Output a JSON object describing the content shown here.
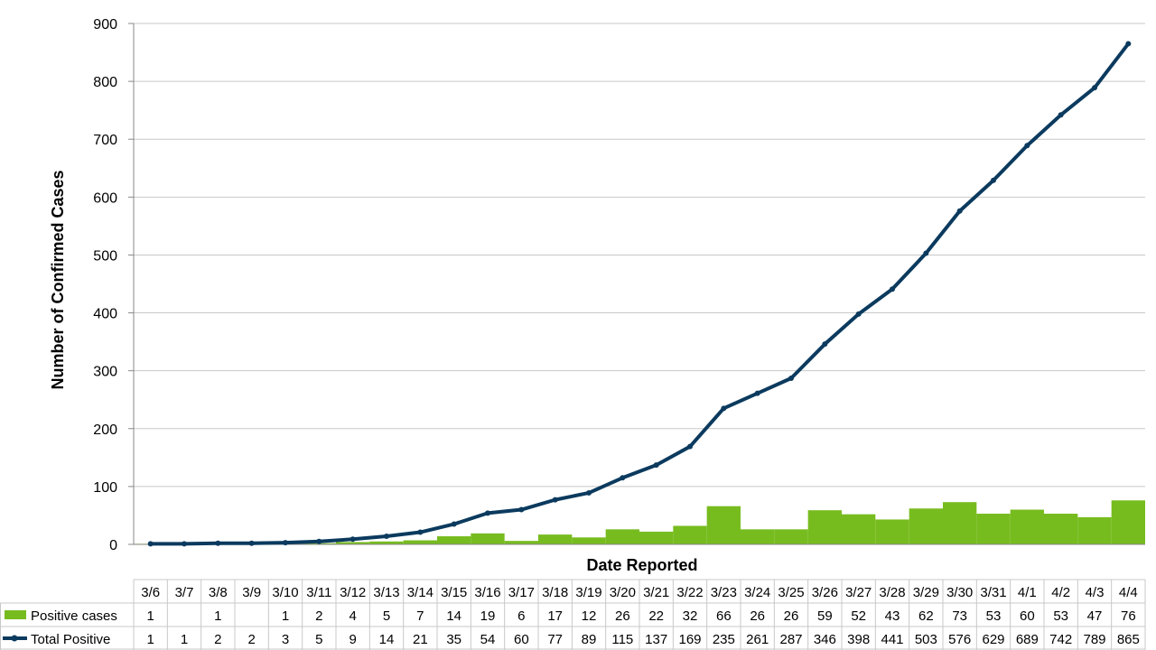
{
  "chart_data": {
    "type": "bar+line",
    "categories": [
      "3/6",
      "3/7",
      "3/8",
      "3/9",
      "3/10",
      "3/11",
      "3/12",
      "3/13",
      "3/14",
      "3/15",
      "3/16",
      "3/17",
      "3/18",
      "3/19",
      "3/20",
      "3/21",
      "3/22",
      "3/23",
      "3/24",
      "3/25",
      "3/26",
      "3/27",
      "3/28",
      "3/29",
      "3/30",
      "3/31",
      "4/1",
      "4/2",
      "4/3",
      "4/4"
    ],
    "series": [
      {
        "name": "Positive cases",
        "type": "bar",
        "color": "#77bc1f",
        "values": [
          1,
          null,
          1,
          null,
          1,
          2,
          4,
          5,
          7,
          14,
          19,
          6,
          17,
          12,
          26,
          22,
          32,
          66,
          26,
          26,
          59,
          52,
          43,
          62,
          73,
          53,
          60,
          53,
          47,
          76
        ]
      },
      {
        "name": "Total Positive",
        "type": "line",
        "color": "#0b3a5e",
        "values": [
          1,
          1,
          2,
          2,
          3,
          5,
          9,
          14,
          21,
          35,
          54,
          60,
          77,
          89,
          115,
          137,
          169,
          235,
          261,
          287,
          346,
          398,
          441,
          503,
          576,
          629,
          689,
          742,
          789,
          865
        ]
      }
    ],
    "title": "",
    "xlabel": "Date Reported",
    "ylabel": "Number of Confirmed Cases",
    "ylim": [
      0,
      900
    ],
    "yticks": [
      0,
      100,
      200,
      300,
      400,
      500,
      600,
      700,
      800,
      900
    ],
    "grid": "horizontal",
    "legend": "data-table"
  }
}
